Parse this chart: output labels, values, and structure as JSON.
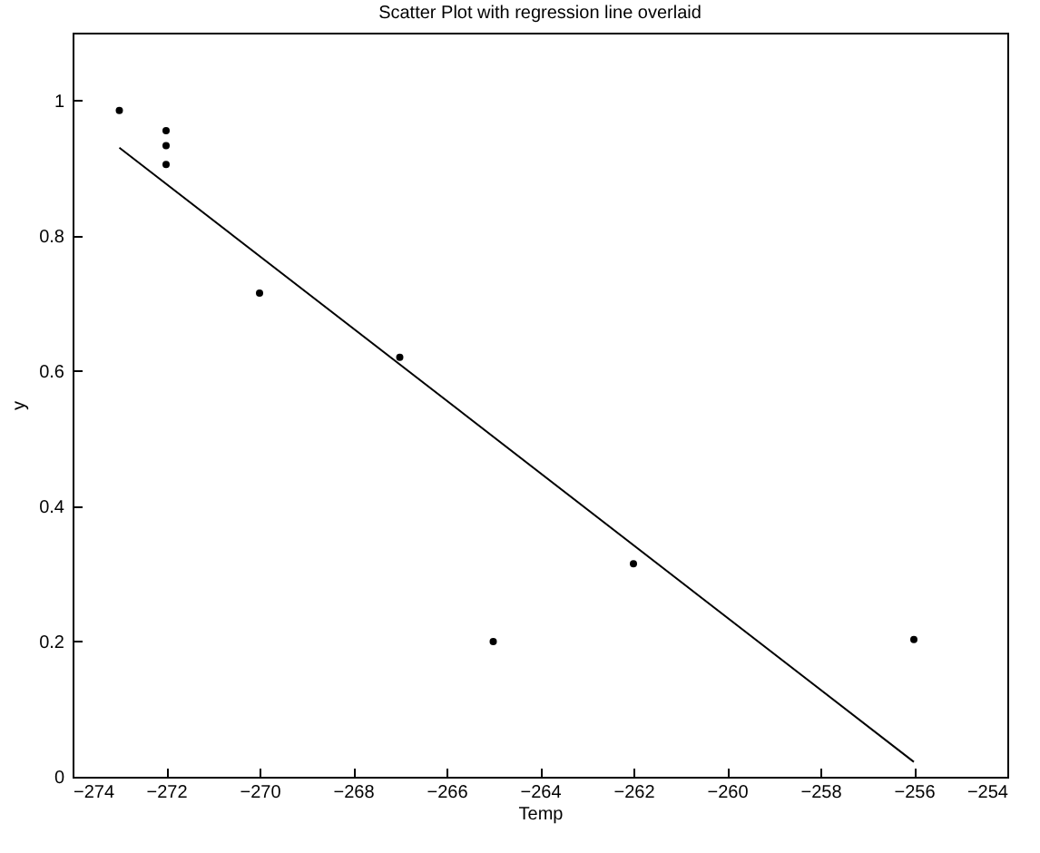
{
  "chart_data": {
    "type": "scatter",
    "title": "Scatter Plot with regression line overlaid",
    "xlabel": "Temp",
    "ylabel": "y",
    "series": [
      {
        "color": "#000000",
        "x": [
          -273,
          -272,
          -272,
          -272,
          -270,
          -267,
          -265,
          -262,
          -256
        ],
        "values": [
          0.985,
          0.955,
          0.933,
          0.905,
          0.715,
          0.62,
          0.2,
          0.315,
          0.203
        ]
      },
      {
        "type": "line",
        "color": "#000000",
        "x": [
          -273,
          -256
        ],
        "values": [
          0.93,
          0.022
        ]
      }
    ],
    "xlim": [
      -274,
      -254
    ],
    "xticks": [
      -274,
      -272,
      -270,
      -268,
      -266,
      -264,
      -262,
      -260,
      -258,
      -256,
      -254
    ],
    "ylim": [
      0,
      1.1
    ],
    "yticks": [
      0,
      0.2,
      0.4,
      0.6,
      0.8,
      1
    ],
    "grid": false
  }
}
